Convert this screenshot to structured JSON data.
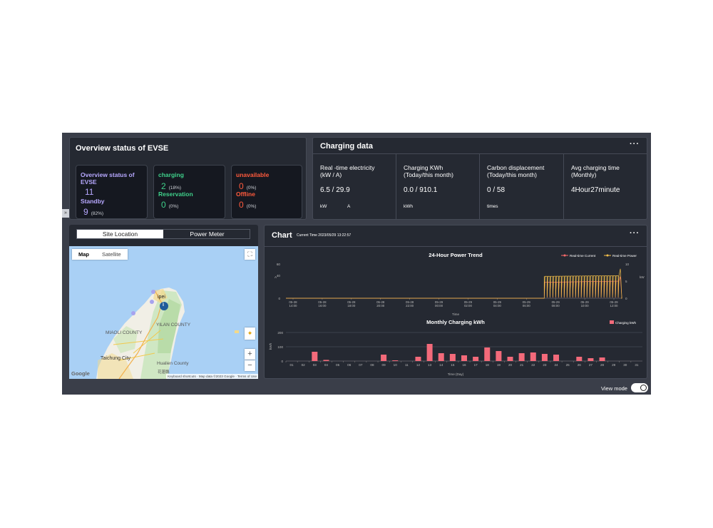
{
  "overview": {
    "title": "Overview status of EVSE",
    "cards": [
      {
        "label": "Overview status of EVSE",
        "value": "11",
        "sub_label": "Standby",
        "sub_value": "9",
        "sub_pct": "(82%)"
      },
      {
        "label": "charging",
        "value": "2",
        "pct": "(18%)",
        "sub_label": "Reservation",
        "sub_value": "0",
        "sub_pct": "(0%)"
      },
      {
        "label": "unavailable",
        "value": "0",
        "pct": "(0%)",
        "sub_label": "Offline",
        "sub_value": "0",
        "sub_pct": "(0%)"
      }
    ],
    "colors": {
      "purple": "#b7a8ff",
      "green": "#3fd08a",
      "red": "#ff5a3c"
    }
  },
  "charging_data": {
    "title": "Charging data",
    "menu": "···",
    "columns": [
      {
        "label": "Real -time electricity\n(kW / A)",
        "value": "6.5 / 29.9",
        "units": [
          "kW",
          "A"
        ]
      },
      {
        "label": "Charging KWh\n(Today/this month)",
        "value": "0.0 / 910.1",
        "units": [
          "kWh"
        ]
      },
      {
        "label": "Carbon displacement\n(Today/this month)",
        "value": "0 / 58",
        "units": [
          "times"
        ]
      },
      {
        "label": "Avg charging time\n(Monthly)",
        "value": "4Hour27minute",
        "units": []
      }
    ]
  },
  "location": {
    "tabs": [
      "Site Location",
      "Power Meter"
    ],
    "map_toggle": [
      "Map",
      "Satellite"
    ],
    "labels": {
      "taipei": "ipei",
      "yilan": "YILAN COUNTY",
      "miaoli": "MIAOLI COUNTY",
      "taichung": "Taichung City",
      "hualien": "Hualien County",
      "hualien_zh": "花蓮縣"
    },
    "zoom_in": "+",
    "zoom_out": "−",
    "google": "Google",
    "footer": "Keyboard shortcuts · Map data ©2023 Google · Terms of Use",
    "pin_label": "i"
  },
  "chart_panel": {
    "title": "Chart",
    "current_time": "Current Time 2023/05/29 13:22:57",
    "menu": "···"
  },
  "chart_data": [
    {
      "type": "line",
      "title": "24-Hour Power Trend",
      "xlabel": "Time",
      "ylabel_left": "A",
      "ylabel_right": "kW",
      "x_ticks": [
        "05-28\n14:00",
        "05-28\n16:00",
        "05-28\n18:00",
        "05-28\n20:00",
        "05-28\n22:00",
        "05-29\n00:00",
        "05-29\n02:00",
        "05-29\n04:00",
        "05-29\n06:00",
        "05-29\n08:00",
        "05-29\n10:00",
        "05-29\n12:00"
      ],
      "y_left_ticks": [
        0,
        40,
        60
      ],
      "y_right_ticks": [
        0,
        5,
        10
      ],
      "ylim_left": [
        0,
        60
      ],
      "ylim_right": [
        0,
        10
      ],
      "series": [
        {
          "name": "Real-time Current",
          "color": "#ff6b6b",
          "x_hours": [
            0,
            18.5,
            18.6,
            23.8,
            24
          ],
          "values": [
            0,
            0,
            28,
            30,
            0
          ]
        },
        {
          "name": "Real-time Power",
          "color": "#f5c04a",
          "x_hours": [
            0,
            18.5,
            18.6,
            23.8,
            24
          ],
          "values": [
            0,
            0,
            6.4,
            6.6,
            0
          ]
        }
      ],
      "legend": "top-right"
    },
    {
      "type": "bar",
      "title": "Monthly Charging kWh",
      "xlabel": "Time (Day)",
      "ylabel": "kWh",
      "ylim": [
        0,
        200
      ],
      "y_ticks": [
        0,
        100,
        200
      ],
      "categories": [
        "01",
        "02",
        "03",
        "04",
        "05",
        "06",
        "07",
        "08",
        "09",
        "10",
        "11",
        "12",
        "13",
        "14",
        "15",
        "16",
        "17",
        "18",
        "19",
        "20",
        "21",
        "22",
        "23",
        "24",
        "25",
        "26",
        "27",
        "28",
        "29",
        "30",
        "31"
      ],
      "series": [
        {
          "name": "Charging kWh",
          "color": "#f36a7a",
          "values": [
            0,
            0,
            65,
            8,
            0,
            0,
            0,
            0,
            45,
            5,
            0,
            30,
            120,
            55,
            50,
            40,
            30,
            95,
            70,
            30,
            55,
            60,
            50,
            45,
            0,
            30,
            20,
            25,
            0,
            0,
            0
          ]
        }
      ],
      "legend": "top-right"
    }
  ],
  "footer": {
    "view_mode": "View mode"
  },
  "side_arrow": "»"
}
